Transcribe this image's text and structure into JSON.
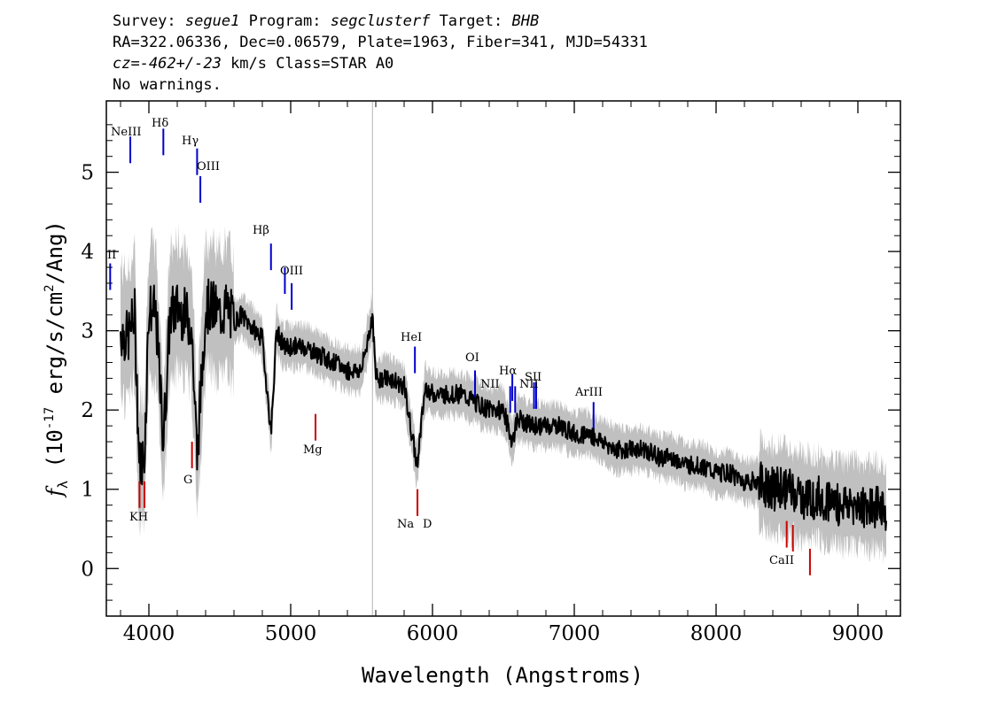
{
  "header": {
    "survey_label": "Survey:",
    "survey_value": "segue1",
    "program_label": "Program:",
    "program_value": "segclusterf",
    "target_label": "Target:",
    "target_value": "BHB",
    "line2": "RA=322.06336, Dec=0.06579, Plate=1963, Fiber=341, MJD=54331",
    "cz_value": "cz=-462+/-23",
    "cz_rest": " km/s Class=STAR A0",
    "line4": "No warnings."
  },
  "chart_data": {
    "type": "line",
    "xlabel": "Wavelength (Angstroms)",
    "ylabel": "f_λ (10^-17 erg/s/cm^2/Ang)",
    "xlim": [
      3700,
      9300
    ],
    "ylim": [
      -0.6,
      5.9
    ],
    "xticks": [
      4000,
      5000,
      6000,
      7000,
      8000,
      9000
    ],
    "yticks": [
      0,
      1,
      2,
      3,
      4,
      5
    ],
    "grid": false,
    "vertical_marker_x": 5577,
    "series": [
      {
        "color": "#000000",
        "style": "spectrum (smoothed flux)",
        "x": [
          3800,
          3850,
          3900,
          3933,
          3968,
          4000,
          4050,
          4102,
          4150,
          4200,
          4250,
          4300,
          4340,
          4400,
          4450,
          4500,
          4550,
          4600,
          4650,
          4700,
          4750,
          4800,
          4861,
          4900,
          4950,
          5000,
          5100,
          5200,
          5300,
          5400,
          5500,
          5577,
          5600,
          5700,
          5800,
          5890,
          5950,
          6000,
          6100,
          6200,
          6300,
          6400,
          6500,
          6563,
          6600,
          6700,
          6800,
          6900,
          7000,
          7100,
          7200,
          7300,
          7400,
          7500,
          7600,
          7700,
          7800,
          7900,
          8000,
          8100,
          8200,
          8300,
          8400,
          8500,
          8600,
          8700,
          8800,
          8900,
          9000,
          9100,
          9200
        ],
        "y": [
          3.0,
          2.9,
          3.2,
          1.3,
          1.4,
          3.3,
          3.2,
          1.6,
          3.2,
          3.3,
          3.2,
          3.1,
          1.4,
          3.3,
          3.3,
          3.2,
          3.3,
          3.1,
          3.2,
          3.1,
          3.0,
          2.9,
          1.7,
          3.0,
          2.8,
          2.8,
          2.8,
          2.7,
          2.6,
          2.5,
          2.5,
          3.2,
          2.4,
          2.4,
          2.3,
          1.3,
          2.3,
          2.2,
          2.2,
          2.2,
          2.1,
          2.0,
          2.0,
          1.6,
          1.9,
          1.8,
          1.8,
          1.8,
          1.7,
          1.7,
          1.6,
          1.5,
          1.5,
          1.5,
          1.4,
          1.4,
          1.3,
          1.3,
          1.2,
          1.2,
          1.1,
          1.1,
          1.0,
          1.0,
          0.9,
          0.9,
          0.85,
          0.8,
          0.8,
          0.8,
          0.75
        ]
      }
    ],
    "emission_lines": [
      {
        "label": "OII",
        "x": 3727,
        "y_top": 3.85
      },
      {
        "label": "NeIII",
        "x": 3869,
        "y_top": 5.45
      },
      {
        "label": "Hδ",
        "x": 4102,
        "y_top": 5.55
      },
      {
        "label": "Hγ",
        "x": 4340,
        "y_top": 5.3
      },
      {
        "label": "OIII",
        "x": 4363,
        "y_top": 4.95
      },
      {
        "label": "Hβ",
        "x": 4861,
        "y_top": 4.1
      },
      {
        "label": "OIII",
        "x": 4959,
        "y_top": 3.8
      },
      {
        "label": "OIII",
        "x": 5007,
        "y_top": 3.6
      },
      {
        "label": "HeI",
        "x": 5876,
        "y_top": 2.8
      },
      {
        "label": "OI",
        "x": 6300,
        "y_top": 2.5
      },
      {
        "label": "NII",
        "x": 6548,
        "y_top": 2.3
      },
      {
        "label": "Hα",
        "x": 6563,
        "y_top": 2.45
      },
      {
        "label": "NII",
        "x": 6583,
        "y_top": 2.3
      },
      {
        "label": "SII",
        "x": 6716,
        "y_top": 2.35
      },
      {
        "label": "SII",
        "x": 6731,
        "y_top": 2.35
      },
      {
        "label": "ArIII",
        "x": 7136,
        "y_top": 2.1
      }
    ],
    "absorption_lines": [
      {
        "label": "K",
        "x": 3934,
        "y_top": 1.1
      },
      {
        "label": "H",
        "x": 3969,
        "y_top": 1.1
      },
      {
        "label": "G",
        "x": 4304,
        "y_top": 1.6
      },
      {
        "label": "Mg",
        "x": 5175,
        "y_top": 1.95
      },
      {
        "label": "Na",
        "x": 5894,
        "y_top": 1.0
      },
      {
        "label": "D",
        "x": 5894,
        "y_top": 1.0
      },
      {
        "label": "CaII",
        "x": 8498,
        "y_top": 0.6
      },
      {
        "label": "CaII",
        "x": 8542,
        "y_top": 0.55
      },
      {
        "label": "CaII",
        "x": 8662,
        "y_top": 0.25
      }
    ],
    "line_label_texts": {
      "oii": "II",
      "neiii": "NeIII",
      "hdelta": "Hδ",
      "hgamma": "Hγ",
      "oiii_a": "OIII",
      "hbeta": "Hβ",
      "oiii_b": "OIII",
      "hei": "HeI",
      "oi": "OI",
      "nii_a": "NII",
      "halpha": "Hα",
      "nii_b": "NII",
      "sii": "SII",
      "ariii": "ArIII",
      "kh": "KH",
      "g": "G",
      "mg": "Mg",
      "na": "Na",
      "d": "D",
      "caii": "CaII"
    },
    "colors": {
      "flux": "#000000",
      "error_band": "#c0c0c0",
      "emission": "#0000cc",
      "absorption": "#cc0000",
      "sky_line": "#c0c0c0"
    }
  }
}
